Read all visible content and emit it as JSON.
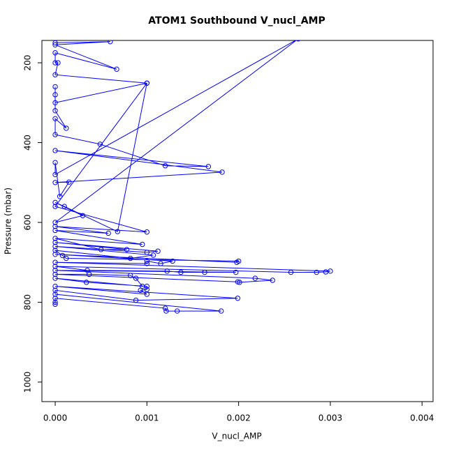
{
  "chart_data": {
    "type": "scatter",
    "mode": "lines+markers",
    "title": "ATOM1 Southbound V_nucl_AMP",
    "x_label": "V_nucl_AMP",
    "y_label": "Pressure (mbar)",
    "xlim": [
      -0.000145,
      0.00412
    ],
    "ylim": [
      1049,
      144
    ],
    "y_reversed": true,
    "xticks": [
      {
        "value": 0,
        "label": "0.000"
      },
      0.001,
      0.002,
      0.003,
      0.004
    ],
    "yticks": [
      200,
      400,
      600,
      800,
      1000
    ],
    "series": [
      {
        "color": "#0000ff",
        "x": [
          0,
          0.0006,
          0,
          0.00067,
          0,
          0,
          3e-05,
          0,
          0.001,
          0,
          0,
          0,
          0,
          0.00012,
          0,
          0,
          0.00049,
          0.0012,
          0.00167,
          0,
          0.00182,
          0,
          0.00015,
          5e-05,
          0,
          0,
          0.00265,
          0,
          0.0003,
          0,
          0.0001,
          0.00068,
          0.001,
          0,
          0.001,
          0,
          0.00058,
          0,
          0.00095,
          0,
          0.0005,
          0.00078,
          0,
          0.00112,
          0.001,
          0,
          0.00107,
          0.00082,
          0,
          8e-05,
          0.00012,
          0.002,
          0.00198,
          0,
          0.00128,
          0.00115,
          0.001,
          0.001,
          0,
          0.003,
          0.00295,
          0.00285,
          0.00257,
          0,
          0.00035,
          0.00122,
          0.00137,
          0.00163,
          0.00197,
          0,
          0.00218,
          0.00237,
          0.00201,
          0.00199,
          0,
          0.00037,
          0.00082,
          0.00088,
          0.00095,
          0,
          0.00034,
          0.001,
          0.001,
          0.00093,
          0.001,
          0,
          0.00199,
          0.00088,
          0,
          0,
          0.00181,
          0.00133,
          0.00121,
          0.0012,
          0,
          0,
          0
        ],
        "y": [
          150,
          147,
          155,
          216,
          175,
          200,
          200,
          230,
          251,
          300,
          260,
          280,
          320,
          364,
          340,
          380,
          404,
          458,
          460,
          420,
          474,
          500,
          499,
          535,
          450,
          480,
          140,
          600,
          583,
          550,
          560,
          623,
          251,
          560,
          624,
          610,
          627,
          620,
          655,
          640,
          668,
          668,
          650,
          672,
          675,
          660,
          682,
          690,
          670,
          683,
          690,
          697,
          700,
          680,
          697,
          703,
          697,
          703,
          700,
          722,
          724,
          725,
          725,
          710,
          720,
          722,
          725,
          725,
          725,
          720,
          740,
          745,
          750,
          749,
          730,
          730,
          733,
          740,
          760,
          740,
          750,
          760,
          768,
          770,
          780,
          760,
          790,
          795,
          770,
          780,
          822,
          822,
          822,
          815,
          790,
          800,
          805
        ]
      }
    ]
  }
}
